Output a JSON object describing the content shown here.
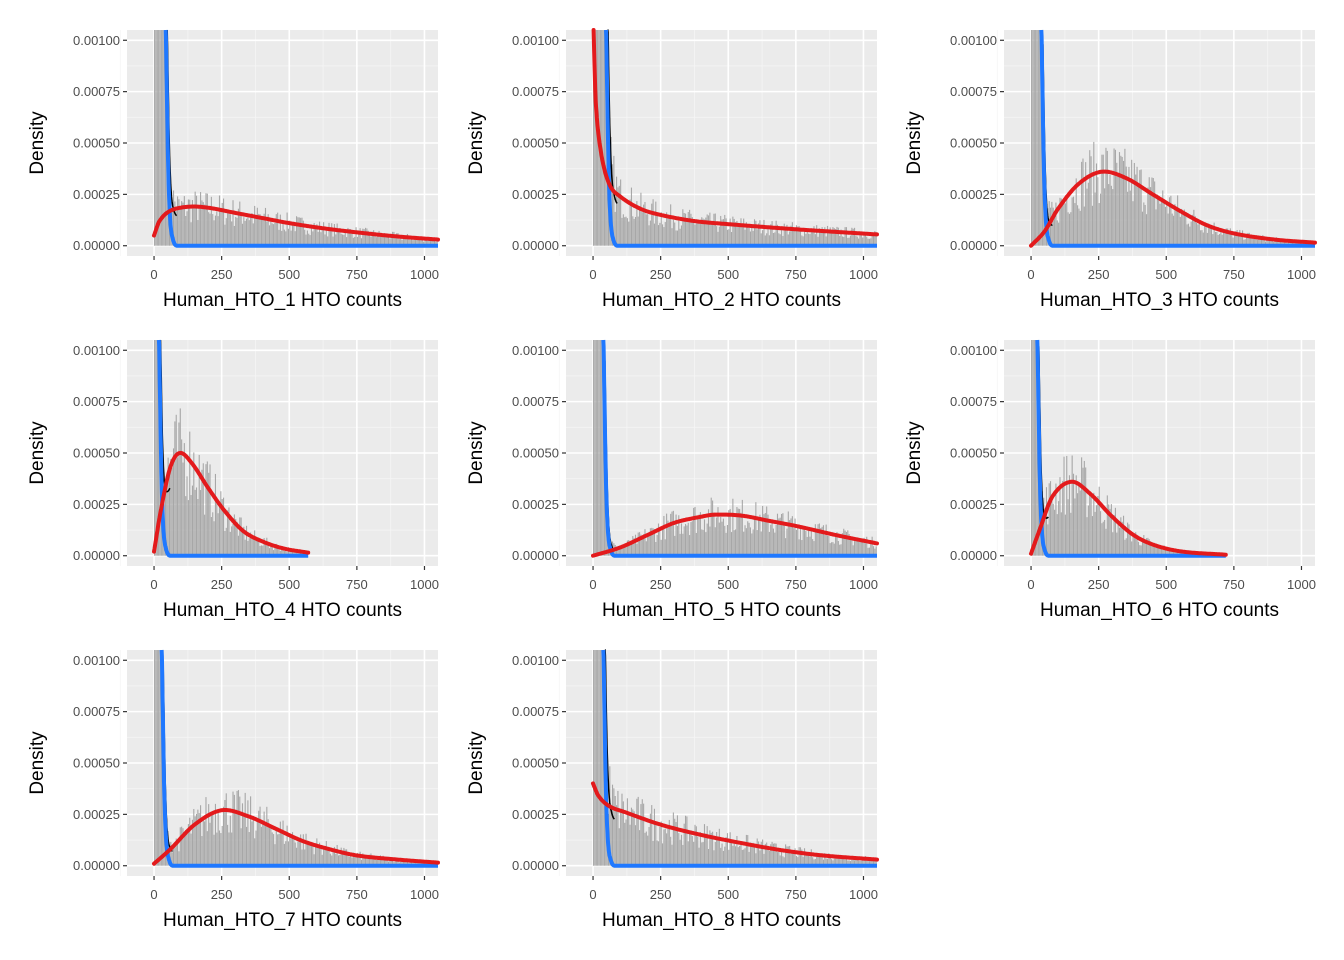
{
  "chart_data": {
    "type": "histogram-with-density-fits",
    "ylabel": "Density",
    "xlim": [
      -100,
      1050
    ],
    "ylim": [
      -5e-05,
      0.00105
    ],
    "x_ticks": [
      "0",
      "250",
      "500",
      "750",
      "1000"
    ],
    "x_tick_values": [
      0,
      250,
      500,
      750,
      1000
    ],
    "y_ticks": [
      "0.00000",
      "0.00025",
      "0.00050",
      "0.00075",
      "0.00100"
    ],
    "y_tick_values": [
      0,
      0.00025,
      0.0005,
      0.00075,
      0.001
    ],
    "grid": true,
    "colors": {
      "histogram": "#a3a3a3",
      "negative_fit": "#1f78ff",
      "positive_fit": "#e31a1c",
      "combined": "#000000",
      "panel_bg": "#ebebeb"
    },
    "panels": [
      {
        "xlabel": "Human_HTO_1 HTO counts",
        "xmax": 1050,
        "blue_x": 45,
        "red": [
          [
            0,
            5e-05
          ],
          [
            20,
            0.00012
          ],
          [
            60,
            0.00017
          ],
          [
            130,
            0.00019
          ],
          [
            200,
            0.000185
          ],
          [
            300,
            0.00016
          ],
          [
            400,
            0.000135
          ],
          [
            500,
            0.00011
          ],
          [
            625,
            8.5e-05
          ],
          [
            750,
            6.5e-05
          ],
          [
            900,
            4.5e-05
          ],
          [
            1050,
            3e-05
          ]
        ]
      },
      {
        "xlabel": "Human_HTO_2 HTO counts",
        "xmax": 1050,
        "blue_x": 50,
        "red": [
          [
            2,
            0.00105
          ],
          [
            10,
            0.0007
          ],
          [
            30,
            0.00045
          ],
          [
            60,
            0.0003
          ],
          [
            100,
            0.00024
          ],
          [
            175,
            0.00018
          ],
          [
            250,
            0.00015
          ],
          [
            375,
            0.00012
          ],
          [
            500,
            0.000105
          ],
          [
            750,
            8e-05
          ],
          [
            1050,
            5.5e-05
          ]
        ]
      },
      {
        "xlabel": "Human_HTO_3 HTO counts",
        "xmax": 1050,
        "blue_x": 40,
        "red": [
          [
            0,
            0.0
          ],
          [
            50,
            7e-05
          ],
          [
            100,
            0.00018
          ],
          [
            175,
            0.0003
          ],
          [
            260,
            0.00036
          ],
          [
            350,
            0.00033
          ],
          [
            450,
            0.00025
          ],
          [
            550,
            0.00017
          ],
          [
            650,
            0.0001
          ],
          [
            750,
            6e-05
          ],
          [
            900,
            3e-05
          ],
          [
            1050,
            1.5e-05
          ]
        ]
      },
      {
        "xlabel": "Human_HTO_4 HTO counts",
        "xmax": 570,
        "blue_x": 20,
        "red": [
          [
            0,
            2e-05
          ],
          [
            25,
            0.00022
          ],
          [
            60,
            0.00043
          ],
          [
            95,
            0.0005
          ],
          [
            140,
            0.00045
          ],
          [
            200,
            0.00033
          ],
          [
            260,
            0.00022
          ],
          [
            330,
            0.00012
          ],
          [
            400,
            7e-05
          ],
          [
            480,
            3.5e-05
          ],
          [
            570,
            1.5e-05
          ]
        ]
      },
      {
        "xlabel": "Human_HTO_5 HTO counts",
        "xmax": 1050,
        "blue_x": 40,
        "red": [
          [
            0,
            0.0
          ],
          [
            100,
            4e-05
          ],
          [
            200,
            0.0001
          ],
          [
            300,
            0.00016
          ],
          [
            400,
            0.00019
          ],
          [
            450,
            0.0002
          ],
          [
            550,
            0.000195
          ],
          [
            650,
            0.00017
          ],
          [
            750,
            0.000145
          ],
          [
            900,
            0.0001
          ],
          [
            1050,
            6e-05
          ]
        ]
      },
      {
        "xlabel": "Human_HTO_6 HTO counts",
        "xmax": 720,
        "blue_x": 25,
        "red": [
          [
            0,
            1e-05
          ],
          [
            30,
            0.00012
          ],
          [
            80,
            0.00029
          ],
          [
            150,
            0.00036
          ],
          [
            220,
            0.0003
          ],
          [
            300,
            0.00019
          ],
          [
            380,
            0.0001
          ],
          [
            460,
            5e-05
          ],
          [
            560,
            2e-05
          ],
          [
            720,
            5e-06
          ]
        ]
      },
      {
        "xlabel": "Human_HTO_7 HTO counts",
        "xmax": 1050,
        "blue_x": 30,
        "red": [
          [
            0,
            1e-05
          ],
          [
            60,
            8e-05
          ],
          [
            150,
            0.0002
          ],
          [
            250,
            0.00027
          ],
          [
            350,
            0.00024
          ],
          [
            450,
            0.00018
          ],
          [
            550,
            0.00012
          ],
          [
            650,
            8e-05
          ],
          [
            750,
            5e-05
          ],
          [
            900,
            3e-05
          ],
          [
            1050,
            1.5e-05
          ]
        ]
      },
      {
        "xlabel": "Human_HTO_8 HTO counts",
        "xmax": 1050,
        "blue_x": 40,
        "red": [
          [
            0,
            0.0004
          ],
          [
            20,
            0.00034
          ],
          [
            60,
            0.00029
          ],
          [
            120,
            0.00026
          ],
          [
            250,
            0.0002
          ],
          [
            400,
            0.00015
          ],
          [
            550,
            0.00011
          ],
          [
            700,
            7.5e-05
          ],
          [
            850,
            5e-05
          ],
          [
            1050,
            3e-05
          ]
        ]
      }
    ]
  }
}
